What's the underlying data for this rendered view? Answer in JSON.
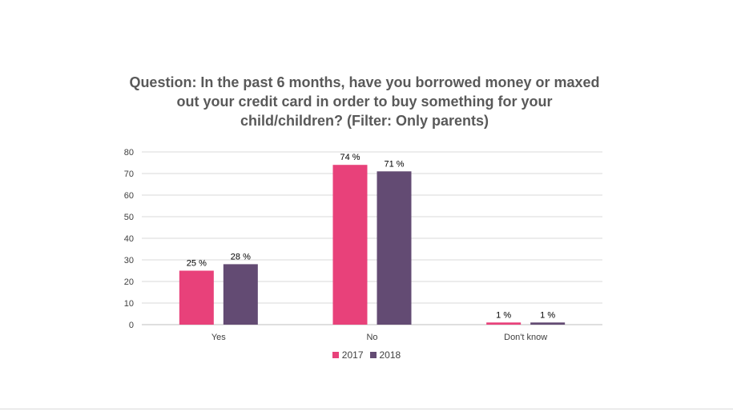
{
  "chart_data": {
    "type": "bar",
    "title_lines": [
      "Question: In the past 6 months, have you borrowed money or maxed",
      "out your credit card in order to buy something for your",
      "child/children? (Filter: Only parents)"
    ],
    "categories": [
      "Yes",
      "No",
      "Don't know"
    ],
    "series": [
      {
        "name": "2017",
        "color": "#E8417A",
        "values": [
          25,
          74,
          1
        ],
        "labels": [
          "25 %",
          "74 %",
          "1 %"
        ]
      },
      {
        "name": "2018",
        "color": "#634B73",
        "values": [
          28,
          71,
          1
        ],
        "labels": [
          "28 %",
          "71 %",
          "1 %"
        ]
      }
    ],
    "yticks": [
      0,
      10,
      20,
      30,
      40,
      50,
      60,
      70,
      80
    ],
    "ylim": [
      0,
      80
    ],
    "grid": true,
    "legend_position": "bottom"
  }
}
